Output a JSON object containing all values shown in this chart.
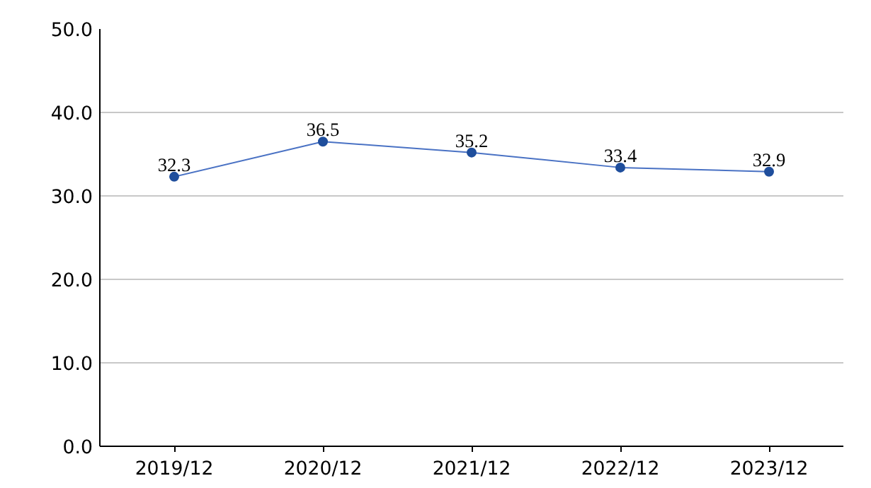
{
  "chart_data": {
    "type": "line",
    "categories": [
      "2019/12",
      "2020/12",
      "2021/12",
      "2022/12",
      "2023/12"
    ],
    "series": [
      {
        "color": "#1f4e9c",
        "values": [
          32.3,
          36.5,
          35.2,
          33.4,
          32.9
        ]
      }
    ],
    "ylim": [
      0,
      50
    ],
    "yticks": [
      {
        "value": 0,
        "label": "0.0"
      },
      {
        "value": 10,
        "label": "10.0"
      },
      {
        "value": 20,
        "label": "20.0"
      },
      {
        "value": 30,
        "label": "30.0"
      },
      {
        "value": 40,
        "label": "40.0"
      },
      {
        "value": 50,
        "label": "50.0"
      }
    ],
    "grid": "y",
    "marker": "circle",
    "data_labels": true
  }
}
